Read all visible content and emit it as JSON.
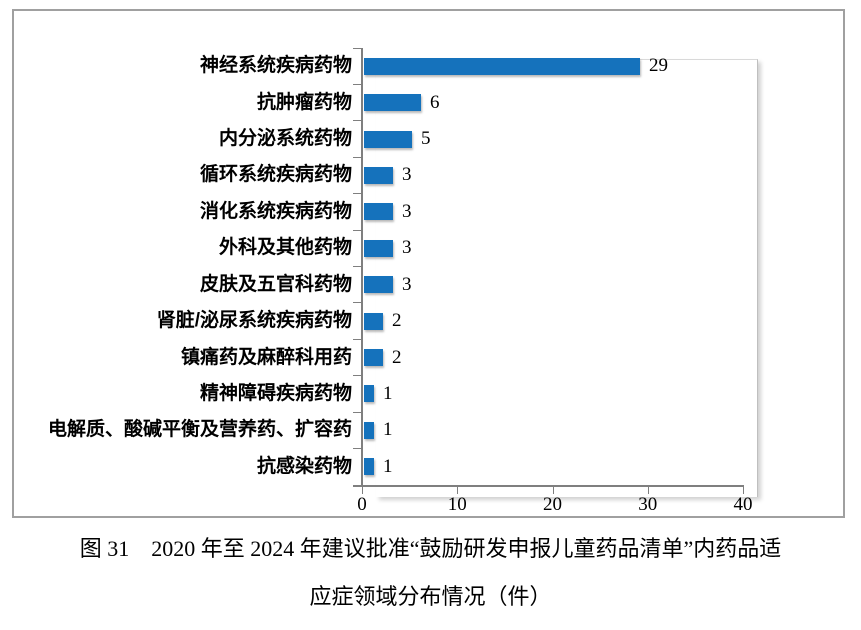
{
  "chart_data": {
    "type": "bar",
    "orientation": "horizontal",
    "categories": [
      "神经系统疾病药物",
      "抗肿瘤药物",
      "内分泌系统药物",
      "循环系统疾病药物",
      "消化系统疾病药物",
      "外科及其他药物",
      "皮肤及五官科药物",
      "肾脏/泌尿系统疾病药物",
      "镇痛药及麻醉科用药",
      "精神障碍疾病药物",
      "电解质、酸碱平衡及营养药、扩容药",
      "抗感染药物"
    ],
    "values": [
      29,
      6,
      5,
      3,
      3,
      3,
      3,
      2,
      2,
      1,
      1,
      1
    ],
    "value_labels_shown": true,
    "title": "图 31　2020 年至 2024 年建议批准“鼓励研发申报儿童药品清单”内药品适应症领域分布情况（件）",
    "xlabel": "",
    "ylabel": "",
    "xlim": [
      0,
      40
    ],
    "x_ticks": [
      0,
      10,
      20,
      30,
      40
    ],
    "grid": "off",
    "legend": "none",
    "bar_color": "#1572bc"
  },
  "caption": {
    "line1": "图 31　2020 年至 2024 年建议批准“鼓励研发申报儿童药品清单”内药品适",
    "line2": "应症领域分布情况（件）"
  },
  "colors": {
    "bar": "#1572bc",
    "axis": "#7f7f7f",
    "frame_border": "#a0a0a0",
    "plot_border": "#d9d9d9",
    "text": "#000000"
  }
}
